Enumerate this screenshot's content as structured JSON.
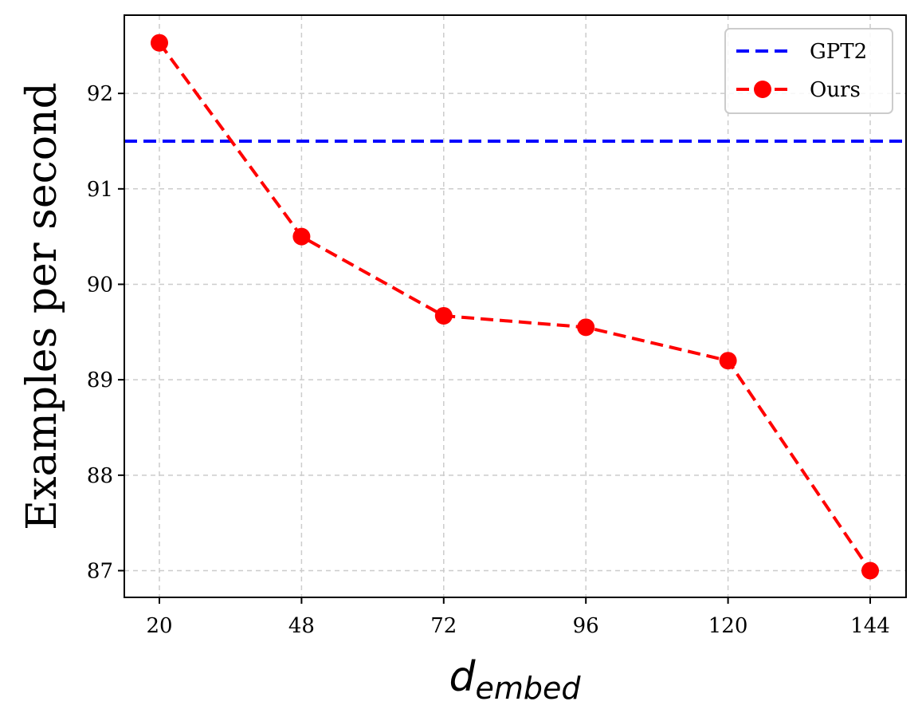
{
  "chart_data": {
    "type": "line",
    "categories": [
      "20",
      "48",
      "72",
      "96",
      "120",
      "144"
    ],
    "series": [
      {
        "name": "Ours",
        "values": [
          92.53,
          90.5,
          89.67,
          89.55,
          89.2,
          87.0
        ],
        "color": "#ff0000",
        "style": "dashed",
        "marker": "circle"
      }
    ],
    "reference_lines": [
      {
        "name": "GPT2",
        "value": 91.5,
        "color": "#0000ff",
        "style": "dashed"
      }
    ],
    "xlabel": "d",
    "xlabel_subscript": "embed",
    "ylabel": "Examples per second",
    "yticks": [
      "87",
      "88",
      "89",
      "90",
      "91",
      "92"
    ],
    "ylim": [
      86.72,
      92.82
    ],
    "grid": true,
    "legend_position": "top-right"
  }
}
